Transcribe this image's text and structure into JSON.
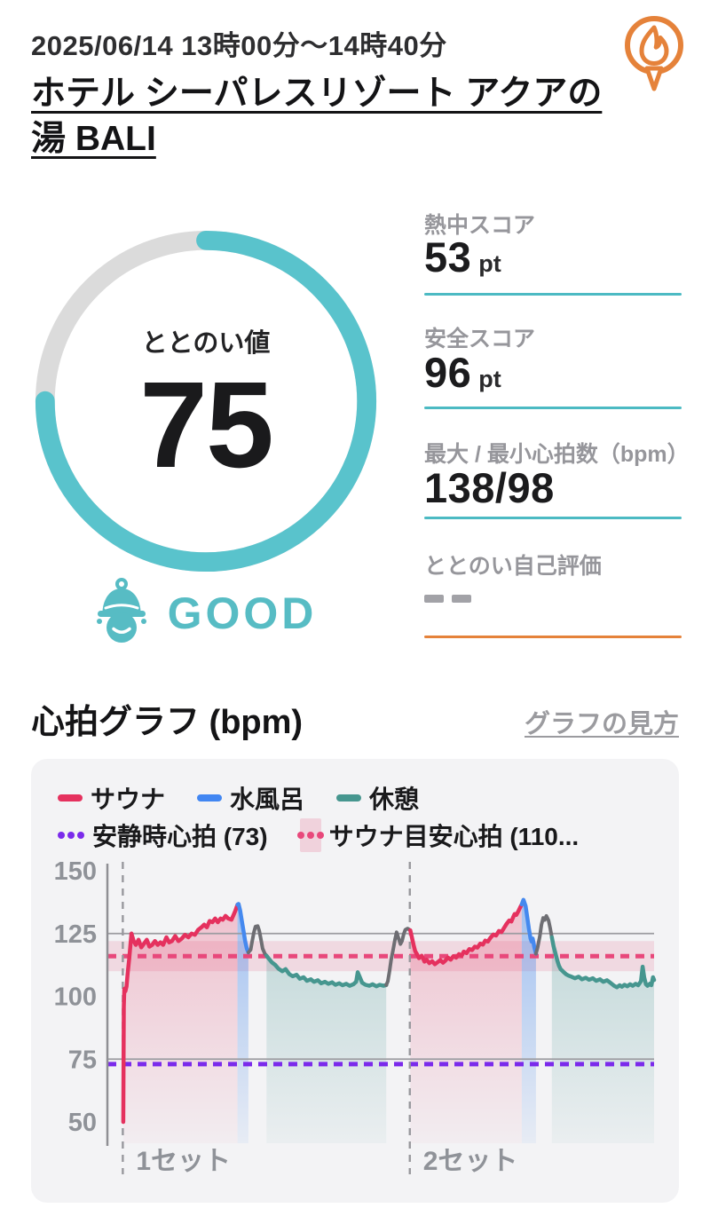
{
  "header": {
    "datetime": "2025/06/14 13時00分〜14時40分",
    "facility_name": "ホテル シーパレスリゾート アクアの湯 BALI",
    "logo_icon": "flame-speech-bubble-icon",
    "logo_color": "#E5823A"
  },
  "totonoi": {
    "label": "ととのい値",
    "value": 75,
    "max": 100,
    "rating": "GOOD",
    "rating_icon": "sauna-hat-face-icon",
    "ring_color": "#59C3CC",
    "ring_track_color": "#DBDBDB",
    "accent": "#57BCC4"
  },
  "metrics": [
    {
      "label": "熱中スコア",
      "value": "53",
      "unit": "pt",
      "underline_color": "#4CBAC3"
    },
    {
      "label": "安全スコア",
      "value": "96",
      "unit": "pt",
      "underline_color": "#4CBAC3"
    },
    {
      "label": "最大 / 最小心拍数（bpm）",
      "value": "138/98",
      "unit": "",
      "underline_color": "#4CBAC3"
    },
    {
      "label": "ととのい自己評価",
      "value": "--",
      "unit": "",
      "underline_color": "#E5823A"
    }
  ],
  "chart_section": {
    "title": "心拍グラフ (bpm)",
    "link": "グラフの見方"
  },
  "chart_data": {
    "type": "line",
    "title": "心拍グラフ (bpm)",
    "ylabel": "bpm",
    "ylim": [
      45,
      155
    ],
    "y_ticks": [
      150,
      125,
      100,
      75,
      50
    ],
    "gridlines": [
      125,
      75
    ],
    "grid": true,
    "legend_position": "top-left",
    "legend": [
      {
        "label": "サウナ",
        "style": "line",
        "color": "#E5315E"
      },
      {
        "label": "水風呂",
        "style": "line",
        "color": "#4186F2"
      },
      {
        "label": "休憩",
        "style": "line",
        "color": "#46968F"
      },
      {
        "label": "安静時心拍 (73)",
        "style": "dots",
        "color": "#7B2BEB"
      },
      {
        "label": "サウナ目安心拍 (110...",
        "style": "dots-band",
        "color": "#E8487B",
        "band_color": "rgba(226,61,109,0.18)"
      }
    ],
    "reference_lines": [
      {
        "name": "resting_heart_rate",
        "value": 73,
        "style": "dashed",
        "color": "#7B2BEB"
      },
      {
        "name": "sauna_target_heart_rate",
        "value": 116,
        "style": "dashed",
        "color": "#E8487B",
        "band": [
          110,
          122
        ],
        "band_color": "rgba(226,61,109,0.14)"
      }
    ],
    "set_markers": [
      {
        "t": 0.029,
        "label": "1セット"
      },
      {
        "t": 0.554,
        "label": "2セット"
      }
    ],
    "colors": {
      "sauna": "#E5315E",
      "water": "#4589EF",
      "rest": "#46968F",
      "transition": "#6E6E73",
      "grid": "#9C9CA1",
      "axis": "#8F8F94",
      "tick_text": "#8F9298",
      "set_dash": "#98989D"
    },
    "segments": [
      {
        "phase": "sauna",
        "fill": true,
        "points": [
          [
            0.029,
            50
          ],
          [
            0.03,
            96
          ],
          [
            0.031,
            103
          ],
          [
            0.033,
            102
          ],
          [
            0.035,
            104
          ],
          [
            0.037,
            109
          ],
          [
            0.04,
            115
          ],
          [
            0.044,
            125
          ],
          [
            0.048,
            122
          ],
          [
            0.052,
            120.5
          ],
          [
            0.057,
            122.5
          ],
          [
            0.062,
            119.5
          ],
          [
            0.067,
            121
          ],
          [
            0.072,
            122.5
          ],
          [
            0.077,
            119.8
          ],
          [
            0.082,
            120.5
          ],
          [
            0.087,
            122
          ],
          [
            0.092,
            120.5
          ],
          [
            0.097,
            121.5
          ],
          [
            0.102,
            120.5
          ],
          [
            0.108,
            123.5
          ],
          [
            0.113,
            121.5
          ],
          [
            0.118,
            122
          ],
          [
            0.124,
            124
          ],
          [
            0.13,
            122
          ],
          [
            0.136,
            123
          ],
          [
            0.142,
            124.5
          ],
          [
            0.148,
            123.5
          ],
          [
            0.154,
            125
          ],
          [
            0.16,
            124.5
          ],
          [
            0.166,
            126.5
          ],
          [
            0.172,
            127.5
          ],
          [
            0.177,
            128.5
          ],
          [
            0.182,
            127.5
          ],
          [
            0.187,
            130
          ],
          [
            0.192,
            129.5
          ],
          [
            0.197,
            131
          ],
          [
            0.202,
            129.5
          ],
          [
            0.207,
            131
          ],
          [
            0.211,
            130.5
          ],
          [
            0.216,
            132
          ],
          [
            0.221,
            131
          ],
          [
            0.227,
            130.5
          ],
          [
            0.231,
            132.5
          ],
          [
            0.234,
            134
          ],
          [
            0.238,
            136.5
          ]
        ]
      },
      {
        "phase": "water",
        "fill": true,
        "points": [
          [
            0.238,
            136.5
          ],
          [
            0.24,
            136.8
          ],
          [
            0.243,
            134
          ],
          [
            0.246,
            130
          ],
          [
            0.249,
            126
          ],
          [
            0.252,
            122
          ],
          [
            0.255,
            119
          ],
          [
            0.258,
            117.5
          ]
        ]
      },
      {
        "phase": "transition",
        "fill": false,
        "points": [
          [
            0.258,
            117.5
          ],
          [
            0.262,
            118.5
          ],
          [
            0.265,
            122
          ],
          [
            0.268,
            125.5
          ],
          [
            0.271,
            127.8
          ],
          [
            0.275,
            128
          ],
          [
            0.278,
            126
          ],
          [
            0.281,
            122.5
          ],
          [
            0.284,
            119
          ],
          [
            0.288,
            117
          ],
          [
            0.291,
            116.2
          ]
        ]
      },
      {
        "phase": "rest",
        "fill": true,
        "points": [
          [
            0.291,
            116.2
          ],
          [
            0.296,
            114.8
          ],
          [
            0.301,
            113.5
          ],
          [
            0.307,
            112.5
          ],
          [
            0.313,
            111
          ],
          [
            0.32,
            110
          ],
          [
            0.326,
            110.8
          ],
          [
            0.333,
            108.8
          ],
          [
            0.339,
            108
          ],
          [
            0.346,
            108.6
          ],
          [
            0.352,
            107
          ],
          [
            0.359,
            107.6
          ],
          [
            0.365,
            106.2
          ],
          [
            0.372,
            106.8
          ],
          [
            0.378,
            105.8
          ],
          [
            0.385,
            106.4
          ],
          [
            0.391,
            105.2
          ],
          [
            0.398,
            105.8
          ],
          [
            0.404,
            105
          ],
          [
            0.411,
            105.6
          ],
          [
            0.417,
            104.6
          ],
          [
            0.424,
            105.2
          ],
          [
            0.43,
            104.4
          ],
          [
            0.437,
            105
          ],
          [
            0.443,
            104.2
          ],
          [
            0.45,
            104.8
          ],
          [
            0.455,
            105.8
          ],
          [
            0.458,
            109.6
          ],
          [
            0.461,
            108
          ],
          [
            0.466,
            105.4
          ],
          [
            0.472,
            104.6
          ],
          [
            0.479,
            104.2
          ],
          [
            0.485,
            104.8
          ],
          [
            0.492,
            104
          ],
          [
            0.498,
            104.6
          ],
          [
            0.505,
            104.2
          ],
          [
            0.51,
            104.5
          ]
        ]
      },
      {
        "phase": "transition",
        "fill": false,
        "points": [
          [
            0.51,
            104.5
          ],
          [
            0.513,
            106
          ],
          [
            0.516,
            110
          ],
          [
            0.519,
            114.5
          ],
          [
            0.523,
            119
          ],
          [
            0.526,
            122.5
          ],
          [
            0.529,
            125.5
          ],
          [
            0.532,
            123.5
          ],
          [
            0.536,
            120.8
          ],
          [
            0.539,
            122
          ],
          [
            0.542,
            124.8
          ],
          [
            0.545,
            126.5
          ],
          [
            0.549,
            127
          ],
          [
            0.554,
            126.3
          ]
        ]
      },
      {
        "phase": "sauna",
        "fill": true,
        "points": [
          [
            0.554,
            126.3
          ],
          [
            0.557,
            123.5
          ],
          [
            0.56,
            120.5
          ],
          [
            0.563,
            118
          ],
          [
            0.567,
            116.5
          ],
          [
            0.57,
            115.2
          ],
          [
            0.575,
            116.2
          ],
          [
            0.58,
            113.8
          ],
          [
            0.584,
            114.6
          ],
          [
            0.589,
            113.2
          ],
          [
            0.594,
            114
          ],
          [
            0.599,
            112.8
          ],
          [
            0.604,
            113.6
          ],
          [
            0.609,
            114.4
          ],
          [
            0.614,
            113.4
          ],
          [
            0.618,
            114.2
          ],
          [
            0.623,
            115.4
          ],
          [
            0.628,
            114.6
          ],
          [
            0.633,
            116
          ],
          [
            0.638,
            115.4
          ],
          [
            0.643,
            116.8
          ],
          [
            0.648,
            116.2
          ],
          [
            0.652,
            117.8
          ],
          [
            0.657,
            117.2
          ],
          [
            0.662,
            118.8
          ],
          [
            0.667,
            118.4
          ],
          [
            0.672,
            119.8
          ],
          [
            0.677,
            119.4
          ],
          [
            0.682,
            121
          ],
          [
            0.687,
            120.6
          ],
          [
            0.691,
            122.2
          ],
          [
            0.696,
            121.8
          ],
          [
            0.701,
            123.4
          ],
          [
            0.706,
            124.6
          ],
          [
            0.711,
            124.2
          ],
          [
            0.716,
            126
          ],
          [
            0.721,
            125.6
          ],
          [
            0.726,
            127.4
          ],
          [
            0.73,
            128.8
          ],
          [
            0.735,
            130.2
          ],
          [
            0.739,
            129.8
          ],
          [
            0.742,
            131.4
          ],
          [
            0.745,
            132.8
          ],
          [
            0.748,
            132.4
          ],
          [
            0.752,
            134
          ],
          [
            0.755,
            135.4
          ],
          [
            0.758,
            136.6
          ]
        ]
      },
      {
        "phase": "water",
        "fill": true,
        "points": [
          [
            0.758,
            136.6
          ],
          [
            0.761,
            138.4
          ],
          [
            0.765,
            136
          ],
          [
            0.768,
            131.5
          ],
          [
            0.771,
            127
          ],
          [
            0.774,
            123
          ],
          [
            0.776,
            121.8
          ],
          [
            0.778,
            123
          ],
          [
            0.781,
            119.5
          ],
          [
            0.784,
            117
          ]
        ]
      },
      {
        "phase": "transition",
        "fill": false,
        "points": [
          [
            0.784,
            117
          ],
          [
            0.787,
            119.5
          ],
          [
            0.791,
            124
          ],
          [
            0.794,
            128.5
          ],
          [
            0.797,
            131.2
          ],
          [
            0.8,
            130.4
          ],
          [
            0.803,
            132
          ],
          [
            0.807,
            130.2
          ],
          [
            0.81,
            127
          ],
          [
            0.813,
            123.5
          ]
        ]
      },
      {
        "phase": "rest",
        "fill": true,
        "points": [
          [
            0.813,
            123.5
          ],
          [
            0.816,
            120
          ],
          [
            0.82,
            116.8
          ],
          [
            0.823,
            114.2
          ],
          [
            0.826,
            112.2
          ],
          [
            0.829,
            110.8
          ],
          [
            0.834,
            109.8
          ],
          [
            0.839,
            108.8
          ],
          [
            0.844,
            108.2
          ],
          [
            0.849,
            107.8
          ],
          [
            0.855,
            107.2
          ],
          [
            0.862,
            107.8
          ],
          [
            0.868,
            106.8
          ],
          [
            0.875,
            107.4
          ],
          [
            0.881,
            106.6
          ],
          [
            0.888,
            107.2
          ],
          [
            0.894,
            106.2
          ],
          [
            0.901,
            106.8
          ],
          [
            0.907,
            105.8
          ],
          [
            0.914,
            106.4
          ],
          [
            0.92,
            105.4
          ],
          [
            0.927,
            104.2
          ],
          [
            0.932,
            103.6
          ],
          [
            0.937,
            104.4
          ],
          [
            0.941,
            103.8
          ],
          [
            0.946,
            104.6
          ],
          [
            0.951,
            104
          ],
          [
            0.956,
            104.8
          ],
          [
            0.961,
            104.2
          ],
          [
            0.966,
            105
          ],
          [
            0.971,
            104.4
          ],
          [
            0.976,
            106
          ],
          [
            0.979,
            111.8
          ],
          [
            0.982,
            107.5
          ],
          [
            0.985,
            104.8
          ],
          [
            0.988,
            104.2
          ],
          [
            0.992,
            105
          ],
          [
            0.995,
            104.4
          ],
          [
            0.998,
            107.6
          ],
          [
            1.0,
            106.5
          ]
        ]
      }
    ]
  }
}
